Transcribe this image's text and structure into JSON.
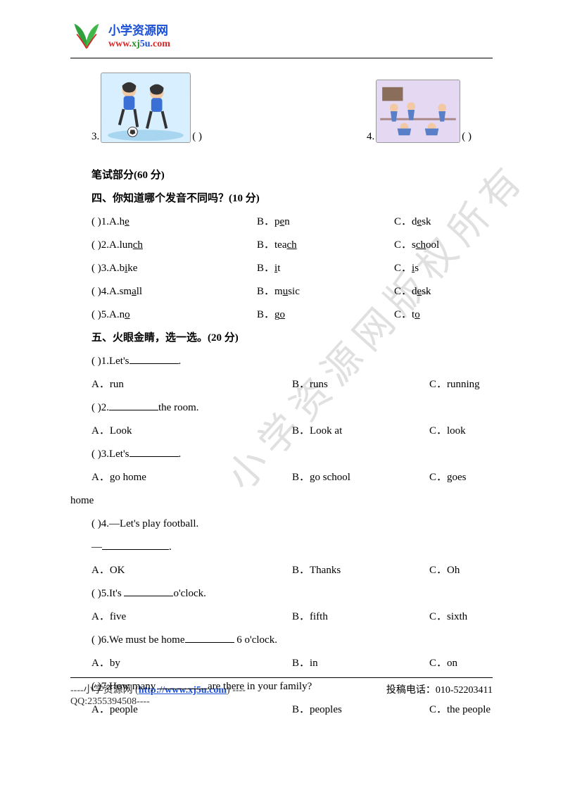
{
  "header": {
    "title": "小学资源网",
    "url_prefix": "www.",
    "url_domain": "xj",
    "url_num": "5u",
    "url_suffix": ".com"
  },
  "watermark": "小学资源网版权所有",
  "images": {
    "num3": "3.",
    "num4": "4.",
    "paren": "(      )"
  },
  "written_section": "笔试部分(60 分)",
  "section4": {
    "title": "四、你知道哪个发音不同吗？(10 分)",
    "rows": [
      {
        "a": "(      )1.A.h",
        "a_ul": "e",
        "b": "B．p",
        "b_ul": "e",
        "b_post": "n",
        "c": "C．d",
        "c_ul": "e",
        "c_post": "sk"
      },
      {
        "a": "(      )2.A.lun",
        "a_ul": "ch",
        "b": "B．tea",
        "b_ul": "ch",
        "b_post": "",
        "c": "C．s",
        "c_ul": "ch",
        "c_post": "ool"
      },
      {
        "a": "(      )3.A.b",
        "a_ul": "i",
        "a_post": "ke",
        "b": "B．",
        "b_ul": "i",
        "b_post": "t",
        "c": "C．",
        "c_ul": "i",
        "c_post": "s"
      },
      {
        "a": "(      )4.A.sm",
        "a_ul": "a",
        "a_post": "ll",
        "b": "B．m",
        "b_ul": "u",
        "b_post": "sic",
        "c": "C．d",
        "c_ul": "e",
        "c_post": "sk"
      },
      {
        "a": "(      )5.A.n",
        "a_ul": "o",
        "a_post": "",
        "b": "B．g",
        "b_ul": "o",
        "b_post": "",
        "c": "C．t",
        "c_ul": "o",
        "c_post": ""
      }
    ]
  },
  "section5": {
    "title": "五、火眼金睛，选一选。(20 分)",
    "q1": {
      "stem_pre": "(      )1.Let's",
      "a": "A．run",
      "b": "B．runs",
      "c": "C．running"
    },
    "q2": {
      "stem_pre": "(      )2.",
      "stem_post": "the room.",
      "a": "A．Look",
      "b": "B．Look at",
      "c": "C．look"
    },
    "q3": {
      "stem_pre": "(      )3.Let's",
      "a": "A．go home",
      "b": "B．go school",
      "c": "C．goes"
    },
    "q3_wrap": "home",
    "q4": {
      "stem": "(      )4.—Let's play football.",
      "a": "A．OK",
      "b": "B．Thanks",
      "c": "C．Oh"
    },
    "q5": {
      "stem_pre": "(      )5.It's ",
      "stem_post": "o'clock.",
      "a": "A．five",
      "b": "B．fifth",
      "c": "C．sixth"
    },
    "q6": {
      "stem_pre": "(      )6.We must be home",
      "stem_post": " 6 o'clock.",
      "a": "A．by",
      "b": "B．in",
      "c": "C．on"
    },
    "q7": {
      "stem_pre": "(      )7.How many ",
      "stem_post": "are there in your family?",
      "a": "A．people",
      "b": "B．peoples",
      "c": "C．the people"
    }
  },
  "footer": {
    "left_pre": "----小学资源网 (",
    "link": "http://www.xj5u.com",
    "left_post": ") ----",
    "right": "投稿电话：010-52203411",
    "qq": "QQ:2355394508----"
  }
}
